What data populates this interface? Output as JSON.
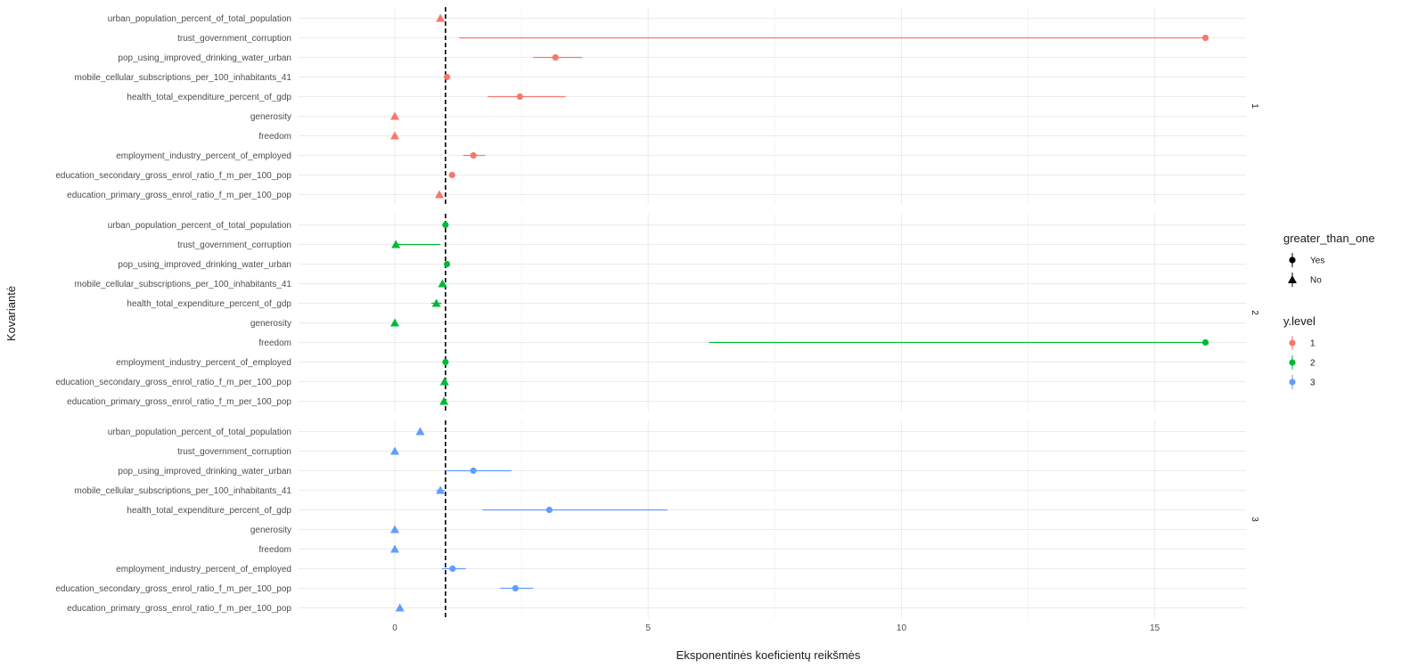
{
  "chart_data": {
    "type": "scatter",
    "xlabel": "Eksponentinės koeficientų reikšmės",
    "ylabel": "Kovariantė",
    "xlim": [
      -1.9,
      16.8
    ],
    "x_ticks": [
      0,
      5,
      10,
      15
    ],
    "reference_line_x": 1,
    "grid": true,
    "legend_position": "right",
    "covariates": [
      "urban_population_percent_of_total_population",
      "trust_government_corruption",
      "pop_using_improved_drinking_water_urban",
      "mobile_cellular_subscriptions_per_100_inhabitants_41",
      "health_total_expenditure_percent_of_gdp",
      "generosity",
      "freedom",
      "employment_industry_percent_of_employed",
      "education_secondary_gross_enrol_ratio_f_m_per_100_pop",
      "education_primary_gross_enrol_ratio_f_m_per_100_pop"
    ],
    "legends": {
      "shape": {
        "title": "greater_than_one",
        "items": [
          {
            "label": "Yes",
            "shape": "circle"
          },
          {
            "label": "No",
            "shape": "triangle"
          }
        ]
      },
      "color": {
        "title": "y.level",
        "items": [
          {
            "label": "1",
            "color": "#F8766D"
          },
          {
            "label": "2",
            "color": "#00BA38"
          },
          {
            "label": "3",
            "color": "#619CFF"
          }
        ]
      }
    },
    "panels": [
      {
        "strip": "1",
        "color": "#F8766D",
        "points": [
          {
            "covariate": "urban_population_percent_of_total_population",
            "value": 0.9,
            "low": 0.9,
            "high": 0.9,
            "greater_than_one": "No"
          },
          {
            "covariate": "trust_government_corruption",
            "value": 16.0,
            "low": 1.27,
            "high": 16.0,
            "greater_than_one": "Yes"
          },
          {
            "covariate": "pop_using_improved_drinking_water_urban",
            "value": 3.17,
            "low": 2.73,
            "high": 3.7,
            "greater_than_one": "Yes"
          },
          {
            "covariate": "mobile_cellular_subscriptions_per_100_inhabitants_41",
            "value": 1.03,
            "low": 1.01,
            "high": 1.05,
            "greater_than_one": "Yes"
          },
          {
            "covariate": "health_total_expenditure_percent_of_gdp",
            "value": 2.47,
            "low": 1.83,
            "high": 3.37,
            "greater_than_one": "Yes"
          },
          {
            "covariate": "generosity",
            "value": 0.0,
            "low": 0.0,
            "high": 0.0,
            "greater_than_one": "No"
          },
          {
            "covariate": "freedom",
            "value": 0.0,
            "low": 0.0,
            "high": 0.0,
            "greater_than_one": "No"
          },
          {
            "covariate": "employment_industry_percent_of_employed",
            "value": 1.55,
            "low": 1.35,
            "high": 1.78,
            "greater_than_one": "Yes"
          },
          {
            "covariate": "education_secondary_gross_enrol_ratio_f_m_per_100_pop",
            "value": 1.13,
            "low": 1.1,
            "high": 1.16,
            "greater_than_one": "Yes"
          },
          {
            "covariate": "education_primary_gross_enrol_ratio_f_m_per_100_pop",
            "value": 0.88,
            "low": 0.83,
            "high": 0.93,
            "greater_than_one": "No"
          }
        ]
      },
      {
        "strip": "2",
        "color": "#00BA38",
        "points": [
          {
            "covariate": "urban_population_percent_of_total_population",
            "value": 1.0,
            "low": 0.98,
            "high": 1.02,
            "greater_than_one": "Yes"
          },
          {
            "covariate": "trust_government_corruption",
            "value": 0.02,
            "low": 0.0,
            "high": 0.9,
            "greater_than_one": "No"
          },
          {
            "covariate": "pop_using_improved_drinking_water_urban",
            "value": 1.03,
            "low": 1.01,
            "high": 1.05,
            "greater_than_one": "Yes"
          },
          {
            "covariate": "mobile_cellular_subscriptions_per_100_inhabitants_41",
            "value": 0.94,
            "low": 0.91,
            "high": 0.97,
            "greater_than_one": "No"
          },
          {
            "covariate": "health_total_expenditure_percent_of_gdp",
            "value": 0.82,
            "low": 0.72,
            "high": 0.92,
            "greater_than_one": "No"
          },
          {
            "covariate": "generosity",
            "value": 0.0,
            "low": 0.0,
            "high": 0.0,
            "greater_than_one": "No"
          },
          {
            "covariate": "freedom",
            "value": 16.0,
            "low": 6.2,
            "high": 16.0,
            "greater_than_one": "Yes"
          },
          {
            "covariate": "employment_industry_percent_of_employed",
            "value": 1.0,
            "low": 0.98,
            "high": 1.02,
            "greater_than_one": "Yes"
          },
          {
            "covariate": "education_secondary_gross_enrol_ratio_f_m_per_100_pop",
            "value": 0.98,
            "low": 0.96,
            "high": 1.0,
            "greater_than_one": "No"
          },
          {
            "covariate": "education_primary_gross_enrol_ratio_f_m_per_100_pop",
            "value": 0.97,
            "low": 0.95,
            "high": 0.99,
            "greater_than_one": "No"
          }
        ]
      },
      {
        "strip": "3",
        "color": "#619CFF",
        "points": [
          {
            "covariate": "urban_population_percent_of_total_population",
            "value": 0.5,
            "low": 0.5,
            "high": 0.5,
            "greater_than_one": "No"
          },
          {
            "covariate": "trust_government_corruption",
            "value": 0.0,
            "low": 0.0,
            "high": 0.0,
            "greater_than_one": "No"
          },
          {
            "covariate": "pop_using_improved_drinking_water_urban",
            "value": 1.55,
            "low": 1.0,
            "high": 2.3,
            "greater_than_one": "Yes"
          },
          {
            "covariate": "mobile_cellular_subscriptions_per_100_inhabitants_41",
            "value": 0.9,
            "low": 0.82,
            "high": 0.98,
            "greater_than_one": "No"
          },
          {
            "covariate": "health_total_expenditure_percent_of_gdp",
            "value": 3.05,
            "low": 1.73,
            "high": 5.38,
            "greater_than_one": "Yes"
          },
          {
            "covariate": "generosity",
            "value": 0.0,
            "low": 0.0,
            "high": 0.0,
            "greater_than_one": "No"
          },
          {
            "covariate": "freedom",
            "value": 0.0,
            "low": 0.0,
            "high": 0.0,
            "greater_than_one": "No"
          },
          {
            "covariate": "employment_industry_percent_of_employed",
            "value": 1.14,
            "low": 0.93,
            "high": 1.4,
            "greater_than_one": "Yes"
          },
          {
            "covariate": "education_secondary_gross_enrol_ratio_f_m_per_100_pop",
            "value": 2.38,
            "low": 2.08,
            "high": 2.73,
            "greater_than_one": "Yes"
          },
          {
            "covariate": "education_primary_gross_enrol_ratio_f_m_per_100_pop",
            "value": 0.1,
            "low": 0.1,
            "high": 0.1,
            "greater_than_one": "No"
          }
        ]
      }
    ]
  }
}
